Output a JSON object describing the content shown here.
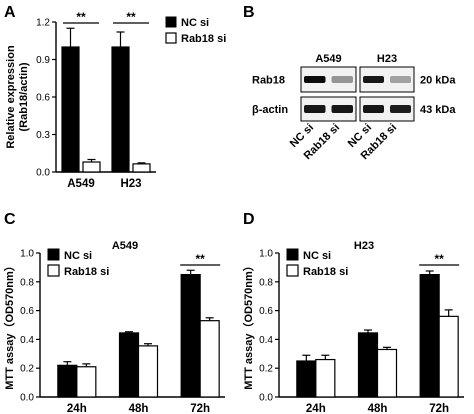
{
  "panel_labels": [
    "A",
    "B",
    "C",
    "D"
  ],
  "legend": {
    "nc": "NC si",
    "rab": "Rab18 si"
  },
  "chart_data": [
    {
      "panel": "A",
      "type": "bar",
      "categories": [
        "A549",
        "H23"
      ],
      "series": [
        {
          "name": "NC si",
          "values": [
            1.0,
            1.0
          ],
          "errors": [
            0.15,
            0.12
          ],
          "color": "#000000"
        },
        {
          "name": "Rab18 si",
          "values": [
            0.08,
            0.065
          ],
          "errors": [
            0.02,
            0.008
          ],
          "color": "#ffffff"
        }
      ],
      "ylabel_lines": [
        "Relative expression",
        "(Rab18/actin)"
      ],
      "ylim": [
        0,
        1.2
      ],
      "yticks": [
        "0.0",
        "0.3",
        "0.6",
        "0.9",
        "1.2"
      ],
      "significance": [
        "**",
        "**"
      ],
      "title": ""
    },
    {
      "panel": "C",
      "type": "bar",
      "title": "A549",
      "categories": [
        "24h",
        "48h",
        "72h"
      ],
      "series": [
        {
          "name": "NC si",
          "values": [
            0.22,
            0.445,
            0.85
          ],
          "errors": [
            0.025,
            0.008,
            0.03
          ],
          "color": "#000000"
        },
        {
          "name": "Rab18 si",
          "values": [
            0.21,
            0.355,
            0.53
          ],
          "errors": [
            0.02,
            0.015,
            0.02
          ],
          "color": "#ffffff"
        }
      ],
      "ylabel": "MTT assay（OD570nm）",
      "ylim": [
        0,
        1.0
      ],
      "yticks": [
        "0.0",
        "0.2",
        "0.4",
        "0.6",
        "0.8",
        "1.0"
      ],
      "significance": "**"
    },
    {
      "panel": "D",
      "type": "bar",
      "title": "H23",
      "categories": [
        "24h",
        "48h",
        "72h"
      ],
      "series": [
        {
          "name": "NC si",
          "values": [
            0.25,
            0.445,
            0.85
          ],
          "errors": [
            0.04,
            0.02,
            0.025
          ],
          "color": "#000000"
        },
        {
          "name": "Rab18 si",
          "values": [
            0.26,
            0.33,
            0.56
          ],
          "errors": [
            0.03,
            0.015,
            0.045
          ],
          "color": "#ffffff"
        }
      ],
      "ylabel": "MTT assay（OD570nm）",
      "ylim": [
        0,
        1.0
      ],
      "yticks": [
        "0.0",
        "0.2",
        "0.4",
        "0.6",
        "0.8",
        "1.0"
      ],
      "significance": "**"
    }
  ],
  "blot": {
    "cell_lines": [
      "A549",
      "H23"
    ],
    "rows": [
      {
        "protein": "Rab18",
        "size": "20 kDa"
      },
      {
        "protein": "β-actin",
        "size": "43 kDa"
      }
    ],
    "lanes": [
      "NC si",
      "Rab18 si",
      "NC si",
      "Rab18 si"
    ],
    "rab18_intensity": [
      0.95,
      0.35,
      0.9,
      0.3
    ],
    "actin_intensity": [
      0.9,
      0.9,
      0.9,
      0.88
    ]
  }
}
